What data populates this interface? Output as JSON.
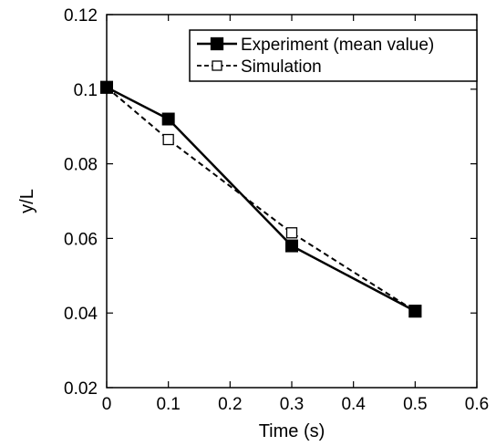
{
  "chart_data": {
    "type": "line",
    "title": "",
    "xlabel": "Time (s)",
    "ylabel": "y/L",
    "xlim": [
      0,
      0.6
    ],
    "ylim": [
      0.02,
      0.12
    ],
    "xticks": [
      "0",
      "0.1",
      "0.2",
      "0.3",
      "0.4",
      "0.5",
      "0.6"
    ],
    "yticks": [
      "0.02",
      "0.04",
      "0.06",
      "0.08",
      "0.1",
      "0.12"
    ],
    "grid": false,
    "legend_position": "top-right",
    "series": [
      {
        "name": "Experiment (mean value)",
        "style": "solid",
        "marker": "filled-square",
        "x": [
          0,
          0.1,
          0.3,
          0.5
        ],
        "y": [
          0.1005,
          0.092,
          0.058,
          0.0405
        ]
      },
      {
        "name": "Simulation",
        "style": "dashed",
        "marker": "open-square",
        "x": [
          0,
          0.1,
          0.3,
          0.5
        ],
        "y": [
          0.1005,
          0.0865,
          0.0615,
          0.0405
        ]
      }
    ]
  }
}
